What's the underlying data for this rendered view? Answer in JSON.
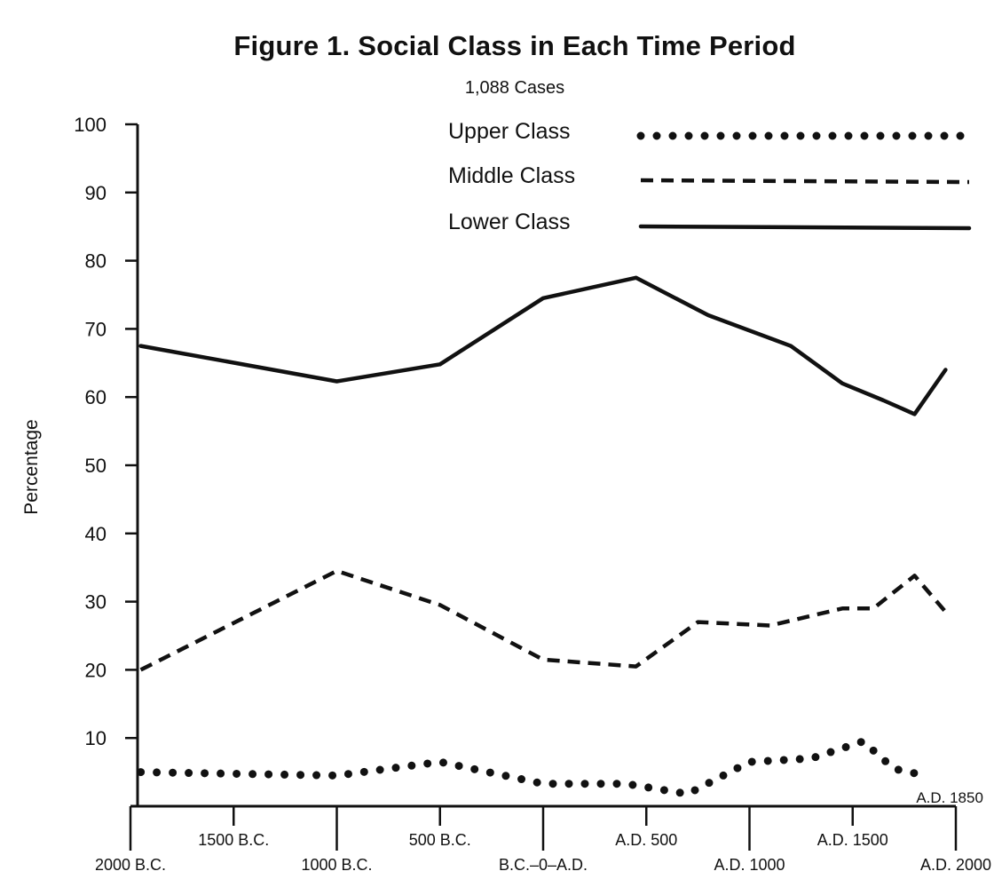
{
  "chart_data": {
    "type": "line",
    "title": "Figure 1.  Social Class in Each Time Period",
    "subtitle": "1,088 Cases",
    "ylabel": "Percentage",
    "xlabel": "",
    "ylim": [
      0,
      100
    ],
    "yticks": [
      10,
      20,
      30,
      40,
      50,
      60,
      70,
      80,
      90,
      100
    ],
    "xlim": [
      -2000,
      2000
    ],
    "xticks": [
      {
        "x": -2000,
        "label": "2000 B.C.",
        "row": "lower"
      },
      {
        "x": -1500,
        "label": "1500 B.C.",
        "row": "upper"
      },
      {
        "x": -1000,
        "label": "1000 B.C.",
        "row": "lower"
      },
      {
        "x": -500,
        "label": "500 B.C.",
        "row": "upper"
      },
      {
        "x": 0,
        "label": "B.C.–0–A.D.",
        "row": "lower"
      },
      {
        "x": 500,
        "label": "A.D. 500",
        "row": "upper"
      },
      {
        "x": 1000,
        "label": "A.D. 1000",
        "row": "lower"
      },
      {
        "x": 1500,
        "label": "A.D. 1500",
        "row": "upper"
      },
      {
        "x": 2000,
        "label": "A.D. 2000",
        "row": "lower"
      }
    ],
    "annotation": {
      "text": "A.D. 1850",
      "x": 1850
    },
    "grid": false,
    "legend": "top-right",
    "series": [
      {
        "name": "Upper Class",
        "style": "dotted",
        "points": [
          [
            -1950,
            5
          ],
          [
            -1000,
            4.5
          ],
          [
            -500,
            6.5
          ],
          [
            0,
            3.3
          ],
          [
            400,
            3.3
          ],
          [
            700,
            1.8
          ],
          [
            1000,
            6.5
          ],
          [
            1300,
            7
          ],
          [
            1550,
            9.5
          ],
          [
            1700,
            5.5
          ],
          [
            1850,
            4.5
          ]
        ]
      },
      {
        "name": "Middle Class",
        "style": "dashed",
        "points": [
          [
            -1950,
            20
          ],
          [
            -1000,
            34.5
          ],
          [
            -500,
            29.5
          ],
          [
            0,
            21.5
          ],
          [
            450,
            20.5
          ],
          [
            750,
            27
          ],
          [
            1100,
            26.5
          ],
          [
            1450,
            29
          ],
          [
            1600,
            29
          ],
          [
            1800,
            33.8
          ],
          [
            1950,
            28.5
          ]
        ]
      },
      {
        "name": "Lower Class",
        "style": "solid",
        "points": [
          [
            -1950,
            67.5
          ],
          [
            -1000,
            62.3
          ],
          [
            -500,
            64.8
          ],
          [
            0,
            74.5
          ],
          [
            450,
            77.5
          ],
          [
            800,
            72
          ],
          [
            1200,
            67.5
          ],
          [
            1450,
            62
          ],
          [
            1650,
            59.5
          ],
          [
            1800,
            57.5
          ],
          [
            1950,
            64
          ]
        ]
      }
    ]
  }
}
